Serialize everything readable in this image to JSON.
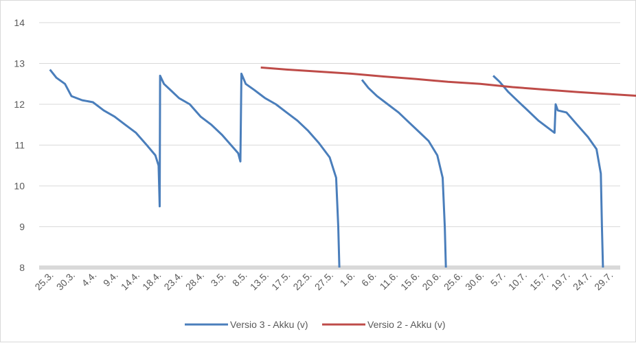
{
  "chart_data": {
    "type": "line",
    "title": "",
    "xlabel": "",
    "ylabel": "",
    "ylim": [
      8,
      14
    ],
    "y_ticks": [
      8,
      9,
      10,
      11,
      12,
      13,
      14
    ],
    "grid": true,
    "legend_position": "bottom",
    "x_tick_labels": [
      "25.3.",
      "30.3.",
      "4.4.",
      "9.4.",
      "14.4.",
      "18.4.",
      "23.4.",
      "28.4.",
      "3.5.",
      "8.5.",
      "13.5.",
      "17.5.",
      "22.5.",
      "27.5.",
      "1.6.",
      "6.6.",
      "11.6.",
      "15.6.",
      "20.6.",
      "25.6.",
      "30.6.",
      "5.7.",
      "10.7.",
      "15.7.",
      "19.7.",
      "24.7.",
      "29.7."
    ],
    "series": [
      {
        "name": "Versio 3 - Akku (v)",
        "color": "#4a7ebb",
        "segments": [
          [
            [
              0,
              12.85
            ],
            [
              0.3,
              12.65
            ],
            [
              0.7,
              12.5
            ],
            [
              1.0,
              12.2
            ],
            [
              1.5,
              12.1
            ],
            [
              2.0,
              12.05
            ],
            [
              2.5,
              11.85
            ],
            [
              3.0,
              11.7
            ],
            [
              3.5,
              11.5
            ],
            [
              4.0,
              11.3
            ],
            [
              4.5,
              11.0
            ],
            [
              4.9,
              10.75
            ],
            [
              5.05,
              10.5
            ],
            [
              5.1,
              9.5
            ],
            [
              5.12,
              12.7
            ],
            [
              5.3,
              12.5
            ],
            [
              5.7,
              12.3
            ],
            [
              6.0,
              12.15
            ],
            [
              6.5,
              12.0
            ],
            [
              7.0,
              11.7
            ],
            [
              7.5,
              11.5
            ],
            [
              8.0,
              11.25
            ],
            [
              8.5,
              10.95
            ],
            [
              8.75,
              10.8
            ],
            [
              8.85,
              10.6
            ],
            [
              8.9,
              12.75
            ],
            [
              9.1,
              12.5
            ],
            [
              9.5,
              12.35
            ],
            [
              10.0,
              12.15
            ],
            [
              10.5,
              12.0
            ],
            [
              11.0,
              11.8
            ],
            [
              11.5,
              11.6
            ],
            [
              12.0,
              11.35
            ],
            [
              12.5,
              11.05
            ],
            [
              13.0,
              10.7
            ],
            [
              13.3,
              10.2
            ],
            [
              13.4,
              9.0
            ],
            [
              13.45,
              8.0
            ]
          ],
          [
            [
              14.5,
              12.6
            ],
            [
              14.8,
              12.4
            ],
            [
              15.2,
              12.2
            ],
            [
              15.7,
              12.0
            ],
            [
              16.2,
              11.8
            ],
            [
              16.7,
              11.55
            ],
            [
              17.2,
              11.3
            ],
            [
              17.6,
              11.1
            ],
            [
              18.0,
              10.75
            ],
            [
              18.25,
              10.2
            ],
            [
              18.35,
              9.0
            ],
            [
              18.4,
              8.0
            ]
          ],
          [
            [
              20.6,
              12.7
            ],
            [
              20.9,
              12.55
            ],
            [
              21.3,
              12.3
            ],
            [
              21.7,
              12.1
            ],
            [
              22.2,
              11.85
            ],
            [
              22.7,
              11.6
            ],
            [
              23.2,
              11.4
            ],
            [
              23.45,
              11.3
            ],
            [
              23.5,
              12.0
            ],
            [
              23.6,
              11.85
            ],
            [
              24.0,
              11.8
            ],
            [
              24.5,
              11.5
            ],
            [
              25.0,
              11.2
            ],
            [
              25.4,
              10.9
            ],
            [
              25.6,
              10.3
            ],
            [
              25.65,
              9.0
            ],
            [
              25.7,
              8.0
            ]
          ]
        ]
      },
      {
        "name": "Versio 2 - Akku (v)",
        "color": "#be4b48",
        "segments": [
          [
            [
              9.8,
              12.9
            ],
            [
              11.0,
              12.85
            ],
            [
              12.5,
              12.8
            ],
            [
              14.0,
              12.75
            ],
            [
              15.5,
              12.68
            ],
            [
              17.0,
              12.62
            ],
            [
              18.5,
              12.55
            ],
            [
              20.0,
              12.5
            ],
            [
              21.5,
              12.42
            ],
            [
              23.0,
              12.36
            ],
            [
              24.5,
              12.3
            ],
            [
              26.0,
              12.25
            ],
            [
              27.5,
              12.2
            ],
            [
              28.0,
              12.17
            ]
          ]
        ]
      }
    ]
  }
}
